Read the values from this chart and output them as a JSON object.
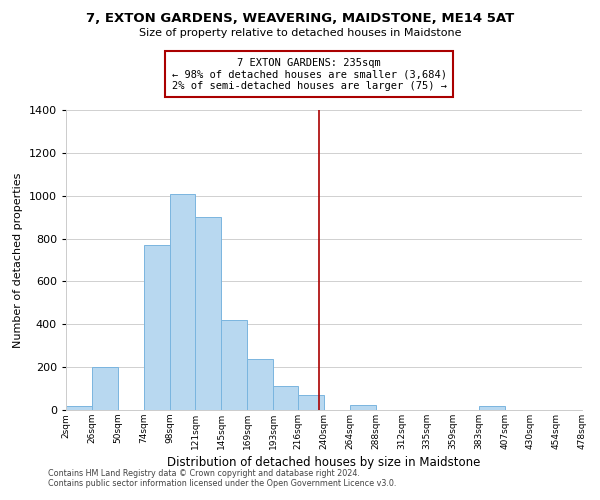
{
  "title": "7, EXTON GARDENS, WEAVERING, MAIDSTONE, ME14 5AT",
  "subtitle": "Size of property relative to detached houses in Maidstone",
  "xlabel": "Distribution of detached houses by size in Maidstone",
  "ylabel": "Number of detached properties",
  "bar_color": "#b8d8f0",
  "bar_edge_color": "#7ab5df",
  "bin_edges": [
    2,
    26,
    50,
    74,
    98,
    121,
    145,
    169,
    193,
    216,
    240,
    264,
    288,
    312,
    335,
    359,
    383,
    407,
    430,
    454,
    478
  ],
  "bar_heights": [
    20,
    200,
    0,
    770,
    1010,
    900,
    420,
    240,
    110,
    70,
    0,
    25,
    0,
    0,
    0,
    0,
    20,
    0,
    0,
    0
  ],
  "tick_labels": [
    "2sqm",
    "26sqm",
    "50sqm",
    "74sqm",
    "98sqm",
    "121sqm",
    "145sqm",
    "169sqm",
    "193sqm",
    "216sqm",
    "240sqm",
    "264sqm",
    "288sqm",
    "312sqm",
    "335sqm",
    "359sqm",
    "383sqm",
    "407sqm",
    "430sqm",
    "454sqm",
    "478sqm"
  ],
  "vline_x": 235,
  "vline_color": "#aa0000",
  "annotation_text_line1": "7 EXTON GARDENS: 235sqm",
  "annotation_text_line2": "← 98% of detached houses are smaller (3,684)",
  "annotation_text_line3": "2% of semi-detached houses are larger (75) →",
  "footer_line1": "Contains HM Land Registry data © Crown copyright and database right 2024.",
  "footer_line2": "Contains public sector information licensed under the Open Government Licence v3.0.",
  "ylim": [
    0,
    1400
  ],
  "yticks": [
    0,
    200,
    400,
    600,
    800,
    1000,
    1200,
    1400
  ],
  "background_color": "#ffffff",
  "grid_color": "#d0d0d0"
}
